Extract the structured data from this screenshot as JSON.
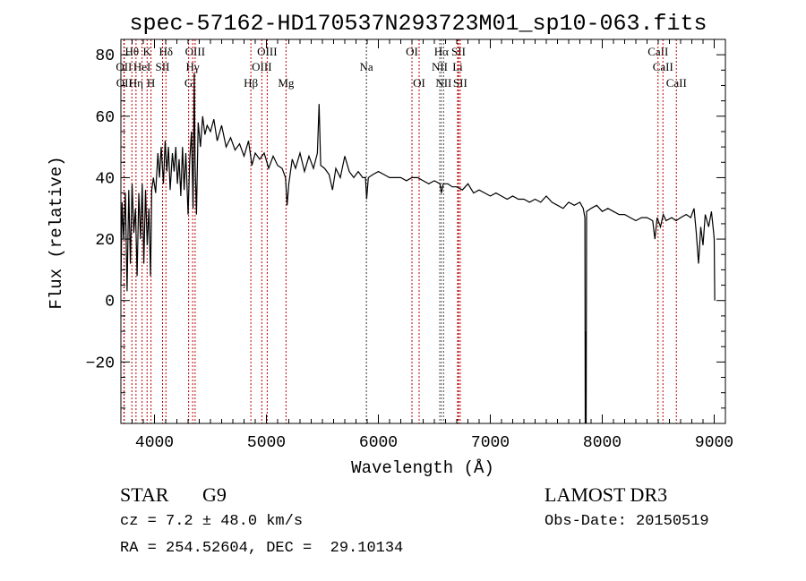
{
  "chart_data": {
    "type": "line",
    "title": "spec-57162-HD170537N293723M01_sp10-063.fits",
    "xlabel": "Wavelength (Å)",
    "ylabel": "Flux (relative)",
    "xlim": [
      3700,
      9100
    ],
    "ylim": [
      -40,
      85
    ],
    "xticks": [
      4000,
      5000,
      6000,
      7000,
      8000,
      9000
    ],
    "yticks": [
      -20,
      0,
      20,
      40,
      60,
      80
    ],
    "grid": false,
    "series": [
      {
        "name": "spectrum",
        "color": "#000000",
        "points": [
          [
            3700,
            5
          ],
          [
            3710,
            32
          ],
          [
            3725,
            20
          ],
          [
            3740,
            35
          ],
          [
            3755,
            3
          ],
          [
            3770,
            36
          ],
          [
            3785,
            12
          ],
          [
            3800,
            38
          ],
          [
            3815,
            22
          ],
          [
            3830,
            30
          ],
          [
            3845,
            8
          ],
          [
            3860,
            35
          ],
          [
            3875,
            20
          ],
          [
            3890,
            38
          ],
          [
            3905,
            12
          ],
          [
            3920,
            36
          ],
          [
            3935,
            18
          ],
          [
            3950,
            30
          ],
          [
            3965,
            8
          ],
          [
            3975,
            36
          ],
          [
            3990,
            40
          ],
          [
            4010,
            35
          ],
          [
            4030,
            48
          ],
          [
            4045,
            40
          ],
          [
            4060,
            50
          ],
          [
            4080,
            38
          ],
          [
            4095,
            52
          ],
          [
            4110,
            42
          ],
          [
            4125,
            50
          ],
          [
            4140,
            36
          ],
          [
            4160,
            48
          ],
          [
            4175,
            42
          ],
          [
            4190,
            50
          ],
          [
            4205,
            38
          ],
          [
            4220,
            46
          ],
          [
            4235,
            34
          ],
          [
            4250,
            50
          ],
          [
            4265,
            36
          ],
          [
            4280,
            48
          ],
          [
            4300,
            28
          ],
          [
            4315,
            46
          ],
          [
            4330,
            55
          ],
          [
            4345,
            30
          ],
          [
            4355,
            74
          ],
          [
            4362,
            45
          ],
          [
            4375,
            28
          ],
          [
            4390,
            58
          ],
          [
            4410,
            50
          ],
          [
            4430,
            60
          ],
          [
            4450,
            54
          ],
          [
            4470,
            57
          ],
          [
            4500,
            55
          ],
          [
            4530,
            59
          ],
          [
            4560,
            52
          ],
          [
            4600,
            57
          ],
          [
            4640,
            50
          ],
          [
            4680,
            53
          ],
          [
            4720,
            49
          ],
          [
            4760,
            51
          ],
          [
            4800,
            47
          ],
          [
            4840,
            52
          ],
          [
            4870,
            44
          ],
          [
            4900,
            48
          ],
          [
            4940,
            46
          ],
          [
            4980,
            48
          ],
          [
            5020,
            43
          ],
          [
            5060,
            47
          ],
          [
            5100,
            44
          ],
          [
            5140,
            43
          ],
          [
            5170,
            40
          ],
          [
            5185,
            31
          ],
          [
            5200,
            38
          ],
          [
            5230,
            46
          ],
          [
            5260,
            43
          ],
          [
            5300,
            48
          ],
          [
            5340,
            42
          ],
          [
            5380,
            47
          ],
          [
            5420,
            43
          ],
          [
            5455,
            48
          ],
          [
            5470,
            64
          ],
          [
            5485,
            44
          ],
          [
            5520,
            43
          ],
          [
            5560,
            41
          ],
          [
            5590,
            36
          ],
          [
            5620,
            43
          ],
          [
            5660,
            40
          ],
          [
            5700,
            47
          ],
          [
            5740,
            42
          ],
          [
            5780,
            40
          ],
          [
            5820,
            42
          ],
          [
            5860,
            40
          ],
          [
            5885,
            40
          ],
          [
            5895,
            33
          ],
          [
            5910,
            40
          ],
          [
            5950,
            41
          ],
          [
            6000,
            42
          ],
          [
            6050,
            41
          ],
          [
            6100,
            40
          ],
          [
            6150,
            40
          ],
          [
            6200,
            40
          ],
          [
            6250,
            39
          ],
          [
            6300,
            40
          ],
          [
            6350,
            40
          ],
          [
            6400,
            39
          ],
          [
            6450,
            38
          ],
          [
            6500,
            39
          ],
          [
            6550,
            38
          ],
          [
            6563,
            35
          ],
          [
            6580,
            38
          ],
          [
            6620,
            38
          ],
          [
            6660,
            37
          ],
          [
            6700,
            37
          ],
          [
            6750,
            36
          ],
          [
            6800,
            38
          ],
          [
            6850,
            35
          ],
          [
            6900,
            36
          ],
          [
            6950,
            35
          ],
          [
            7000,
            34
          ],
          [
            7050,
            35
          ],
          [
            7100,
            34
          ],
          [
            7150,
            33
          ],
          [
            7200,
            34
          ],
          [
            7250,
            33
          ],
          [
            7300,
            33
          ],
          [
            7350,
            32
          ],
          [
            7400,
            33
          ],
          [
            7450,
            32
          ],
          [
            7500,
            34
          ],
          [
            7550,
            32
          ],
          [
            7600,
            31
          ],
          [
            7650,
            30
          ],
          [
            7700,
            32
          ],
          [
            7750,
            31
          ],
          [
            7800,
            32
          ],
          [
            7830,
            30
          ],
          [
            7845,
            27
          ],
          [
            7848,
            -40
          ],
          [
            7852,
            -10
          ],
          [
            7856,
            -40
          ],
          [
            7860,
            29
          ],
          [
            7900,
            30
          ],
          [
            7950,
            31
          ],
          [
            8000,
            29
          ],
          [
            8050,
            30
          ],
          [
            8100,
            29
          ],
          [
            8150,
            28
          ],
          [
            8200,
            28
          ],
          [
            8250,
            27
          ],
          [
            8300,
            26
          ],
          [
            8350,
            27
          ],
          [
            8400,
            27
          ],
          [
            8450,
            26
          ],
          [
            8470,
            20
          ],
          [
            8490,
            27
          ],
          [
            8520,
            24
          ],
          [
            8545,
            28
          ],
          [
            8570,
            26
          ],
          [
            8620,
            27
          ],
          [
            8660,
            26
          ],
          [
            8700,
            27
          ],
          [
            8750,
            28
          ],
          [
            8790,
            27
          ],
          [
            8820,
            30
          ],
          [
            8840,
            22
          ],
          [
            8860,
            12
          ],
          [
            8880,
            24
          ],
          [
            8900,
            18
          ],
          [
            8920,
            28
          ],
          [
            8950,
            24
          ],
          [
            8975,
            29
          ],
          [
            8995,
            22
          ],
          [
            9000,
            20
          ],
          [
            9005,
            0
          ]
        ]
      }
    ],
    "lines": [
      {
        "label": "Hθ",
        "w": 3798,
        "row": 1,
        "color": "#c00000"
      },
      {
        "label": "K",
        "w": 3934,
        "row": 1,
        "color": "#c00000"
      },
      {
        "label": "Hδ",
        "w": 4102,
        "row": 1,
        "color": "#c00000"
      },
      {
        "label": "OIII",
        "w": 4363,
        "row": 1,
        "color": "#c00000"
      },
      {
        "label": "OIII",
        "w": 5007,
        "row": 1,
        "color": "#c00000"
      },
      {
        "label": "OI",
        "w": 6300,
        "row": 1,
        "color": "#c00000"
      },
      {
        "label": "Hα",
        "w": 6563,
        "row": 1,
        "color": "#555555"
      },
      {
        "label": "SII",
        "w": 6716,
        "row": 1,
        "color": "#c00000"
      },
      {
        "label": "CaII",
        "w": 8498,
        "row": 1,
        "color": "#c00000"
      },
      {
        "label": "OII",
        "w": 3727,
        "row": 2,
        "color": "#c00000"
      },
      {
        "label": "HeI",
        "w": 3889,
        "row": 2,
        "color": "#c00000"
      },
      {
        "label": "SII",
        "w": 4072,
        "row": 2,
        "color": "#c00000"
      },
      {
        "label": "Hγ",
        "w": 4341,
        "row": 2,
        "color": "#c00000"
      },
      {
        "label": "OIII",
        "w": 4959,
        "row": 2,
        "color": "#c00000"
      },
      {
        "label": "Na",
        "w": 5893,
        "row": 2,
        "color": "#333333"
      },
      {
        "label": "NII",
        "w": 6548,
        "row": 2,
        "color": "#555555"
      },
      {
        "label": "Li",
        "w": 6708,
        "row": 2,
        "color": "#c00000"
      },
      {
        "label": "CaII",
        "w": 8542,
        "row": 2,
        "color": "#c00000"
      },
      {
        "label": "OII",
        "w": 3730,
        "row": 3,
        "color": "#c00000"
      },
      {
        "label": "Hη",
        "w": 3835,
        "row": 3,
        "color": "#c00000"
      },
      {
        "label": "H",
        "w": 3969,
        "row": 3,
        "color": "#c00000"
      },
      {
        "label": "G",
        "w": 4305,
        "row": 3,
        "color": "#c00000"
      },
      {
        "label": "Hβ",
        "w": 4861,
        "row": 3,
        "color": "#c00000"
      },
      {
        "label": "Mg",
        "w": 5175,
        "row": 3,
        "color": "#c00000"
      },
      {
        "label": "OI",
        "w": 6364,
        "row": 3,
        "color": "#c00000"
      },
      {
        "label": "NII",
        "w": 6583,
        "row": 3,
        "color": "#555555"
      },
      {
        "label": "SII",
        "w": 6731,
        "row": 3,
        "color": "#c00000"
      },
      {
        "label": "CaII",
        "w": 8662,
        "row": 3,
        "color": "#c00000"
      }
    ]
  },
  "info": {
    "class": "STAR",
    "subclass": "G9",
    "cz": "cz = 7.2 ± 48.0 km/s",
    "radec": "RA = 254.52604, DEC =  29.10134",
    "survey": "LAMOST DR3",
    "obs_date": "Obs-Date: 20150519"
  }
}
